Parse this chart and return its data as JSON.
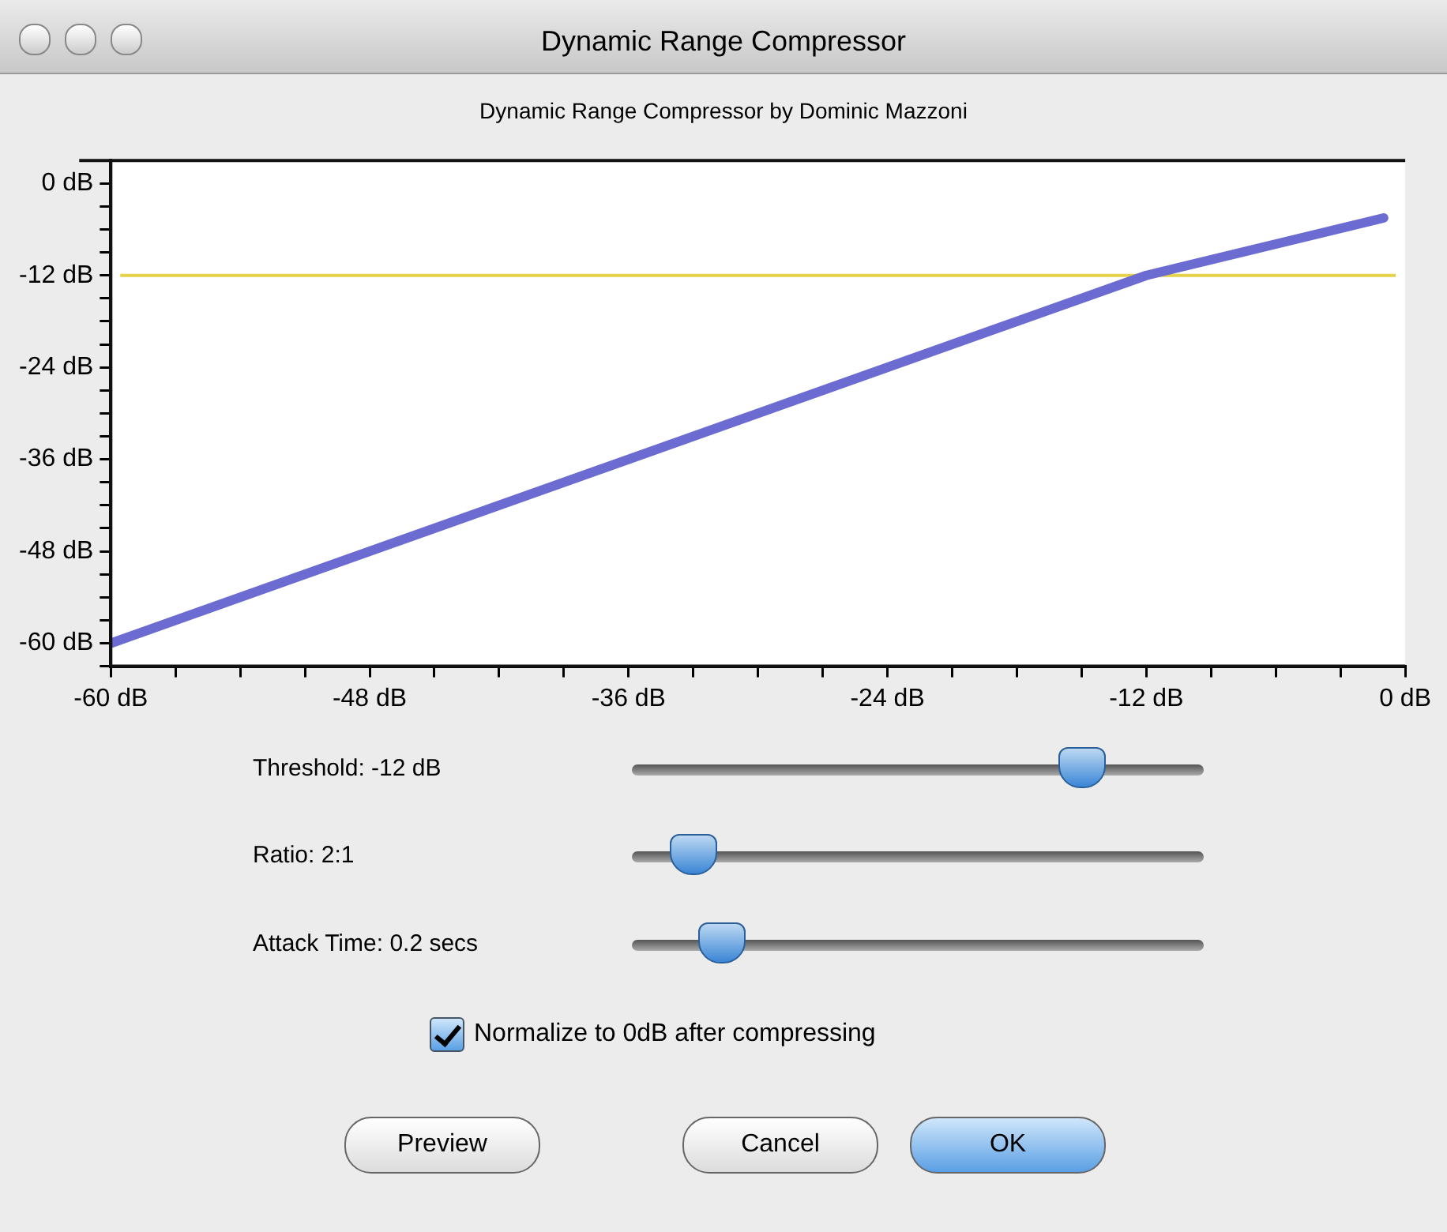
{
  "chart_data": {
    "type": "line",
    "title": "Dynamic Range Compressor",
    "subtitle": "Dynamic Range Compressor by Dominic Mazzoni",
    "series": [
      {
        "color": "#6b6bd2",
        "x": [
          -60,
          -12,
          -1
        ],
        "values": [
          -60,
          -12,
          -4.5
        ]
      }
    ],
    "xlim": [
      -60,
      0
    ],
    "ylim": [
      -63,
      3
    ],
    "xticks": [
      {
        "value": -60,
        "label": "-60 dB"
      },
      {
        "value": -57,
        "label": null
      },
      {
        "value": -54,
        "label": null
      },
      {
        "value": -51,
        "label": null
      },
      {
        "value": -48,
        "label": "-48 dB"
      },
      {
        "value": -45,
        "label": null
      },
      {
        "value": -42,
        "label": null
      },
      {
        "value": -39,
        "label": null
      },
      {
        "value": -36,
        "label": "-36 dB"
      },
      {
        "value": -33,
        "label": null
      },
      {
        "value": -30,
        "label": null
      },
      {
        "value": -27,
        "label": null
      },
      {
        "value": -24,
        "label": "-24 dB"
      },
      {
        "value": -21,
        "label": null
      },
      {
        "value": -18,
        "label": null
      },
      {
        "value": -15,
        "label": null
      },
      {
        "value": -12,
        "label": "-12 dB"
      },
      {
        "value": -9,
        "label": null
      },
      {
        "value": -6,
        "label": null
      },
      {
        "value": -3,
        "label": null
      },
      {
        "value": 0,
        "label": "0 dB"
      }
    ],
    "yticks": [
      {
        "value": -63,
        "label": null
      },
      {
        "value": -60,
        "label": "-60 dB"
      },
      {
        "value": -57,
        "label": null
      },
      {
        "value": -54,
        "label": null
      },
      {
        "value": -51,
        "label": null
      },
      {
        "value": -48,
        "label": "-48 dB"
      },
      {
        "value": -45,
        "label": null
      },
      {
        "value": -42,
        "label": null
      },
      {
        "value": -39,
        "label": null
      },
      {
        "value": -36,
        "label": "-36 dB"
      },
      {
        "value": -33,
        "label": null
      },
      {
        "value": -30,
        "label": null
      },
      {
        "value": -27,
        "label": null
      },
      {
        "value": -24,
        "label": "-24 dB"
      },
      {
        "value": -21,
        "label": null
      },
      {
        "value": -18,
        "label": null
      },
      {
        "value": -15,
        "label": null
      },
      {
        "value": -12,
        "label": "-12 dB"
      },
      {
        "value": -9,
        "label": null
      },
      {
        "value": -6,
        "label": null
      },
      {
        "value": -3,
        "label": null
      },
      {
        "value": 0,
        "label": "0 dB"
      },
      {
        "value": 3,
        "label": null
      }
    ],
    "ref_lines": [
      {
        "axis": "y",
        "value": -12,
        "color": "#e6d24a"
      }
    ],
    "marker": "none",
    "line_style": "solid",
    "legend": false,
    "annotations": [
      "Threshold: -12 dB",
      "Ratio: 2:1",
      "Attack Time: 0.2 secs",
      "Normalize to 0dB after compressing",
      "Preview",
      "Cancel",
      "OK"
    ]
  }
}
